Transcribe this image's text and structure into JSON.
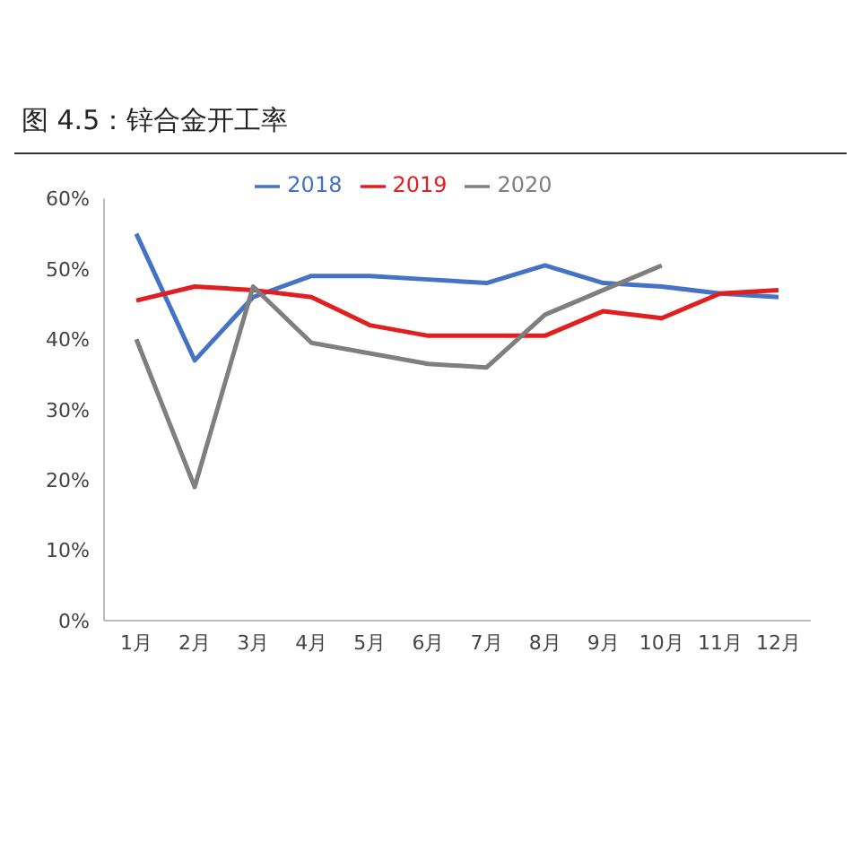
{
  "chart_data": {
    "type": "line",
    "title": "图 4.5：锌合金开工率",
    "categories": [
      "1月",
      "2月",
      "3月",
      "4月",
      "5月",
      "6月",
      "7月",
      "8月",
      "9月",
      "10月",
      "11月",
      "12月"
    ],
    "series": [
      {
        "name": "2018",
        "color": "#4472c4",
        "values": [
          55,
          37,
          46,
          49,
          49,
          48.5,
          48,
          50.5,
          48,
          47.5,
          46.5,
          46
        ]
      },
      {
        "name": "2019",
        "color": "#e02020",
        "values": [
          45.5,
          47.5,
          47,
          46,
          42,
          40.5,
          40.5,
          40.5,
          44,
          43,
          46.5,
          47
        ]
      },
      {
        "name": "2020",
        "color": "#7f7f7f",
        "values": [
          40,
          19,
          47.5,
          39.5,
          38,
          36.5,
          36,
          43.5,
          47,
          50.5,
          null,
          null
        ]
      }
    ],
    "ylim": [
      0,
      60
    ],
    "yticks": [
      {
        "value": 0,
        "label": "0%"
      },
      {
        "value": 10,
        "label": "10%"
      },
      {
        "value": 20,
        "label": "20%"
      },
      {
        "value": 30,
        "label": "30%"
      },
      {
        "value": 40,
        "label": "40%"
      },
      {
        "value": 50,
        "label": "50%"
      },
      {
        "value": 60,
        "label": "60%"
      }
    ],
    "grid": false,
    "legend": "top",
    "marker": "none",
    "line_style": "solid"
  }
}
